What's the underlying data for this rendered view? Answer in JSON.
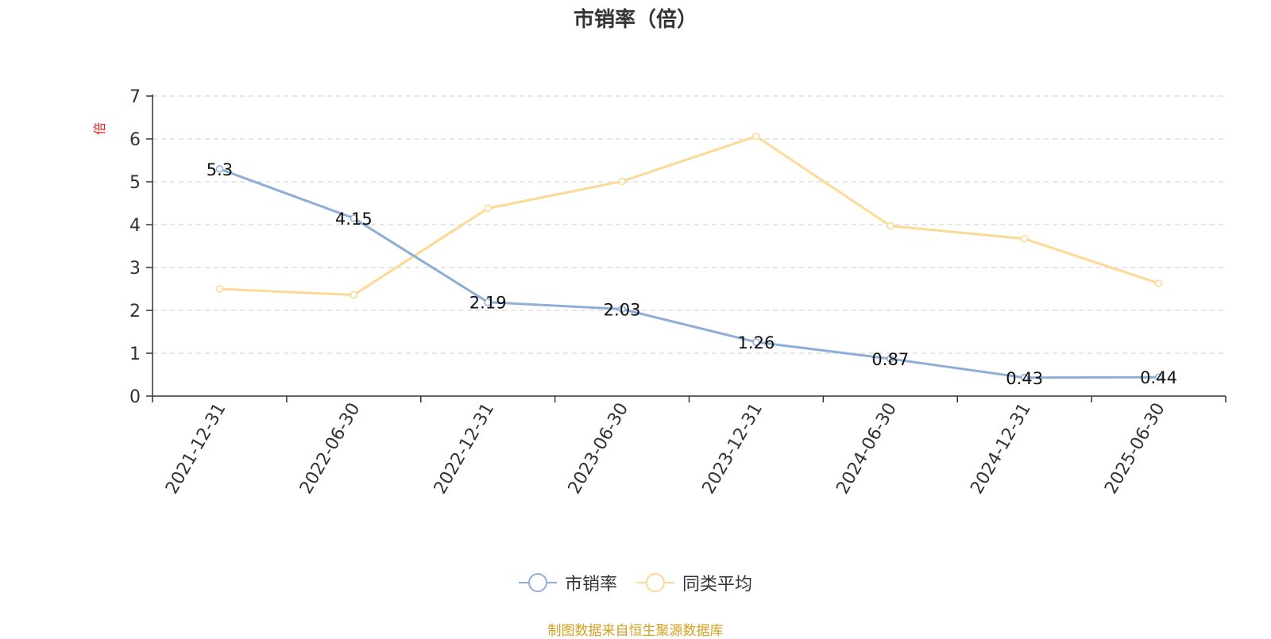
{
  "chart_data": {
    "type": "line",
    "title": "市销率（倍）",
    "ylabel": "倍",
    "xlabel": "",
    "categories": [
      "2021-12-31",
      "2022-06-30",
      "2022-12-31",
      "2023-06-30",
      "2023-12-31",
      "2024-06-30",
      "2024-12-31",
      "2025-06-30"
    ],
    "ylim": [
      0,
      7
    ],
    "yticks": [
      "0",
      "1",
      "2",
      "3",
      "4",
      "5",
      "6",
      "7"
    ],
    "grid": true,
    "legend_position": "bottom",
    "series": [
      {
        "name": "市销率",
        "color": "#8eaed8",
        "values": [
          5.3,
          4.15,
          2.19,
          2.03,
          1.26,
          0.87,
          0.43,
          0.44
        ],
        "labels": [
          "5.3",
          "4.15",
          "2.19",
          "2.03",
          "1.26",
          "0.87",
          "0.43",
          "0.44"
        ]
      },
      {
        "name": "同类平均",
        "color": "#fcd994",
        "values": [
          2.5,
          2.36,
          4.38,
          5.01,
          6.06,
          3.97,
          3.67,
          2.63
        ]
      }
    ]
  },
  "source_note": "制图数据来自恒生聚源数据库",
  "colors": {
    "axis": "#333333",
    "grid": "#cccccc",
    "ylabel": "#e02020",
    "source": "#d4a020"
  }
}
